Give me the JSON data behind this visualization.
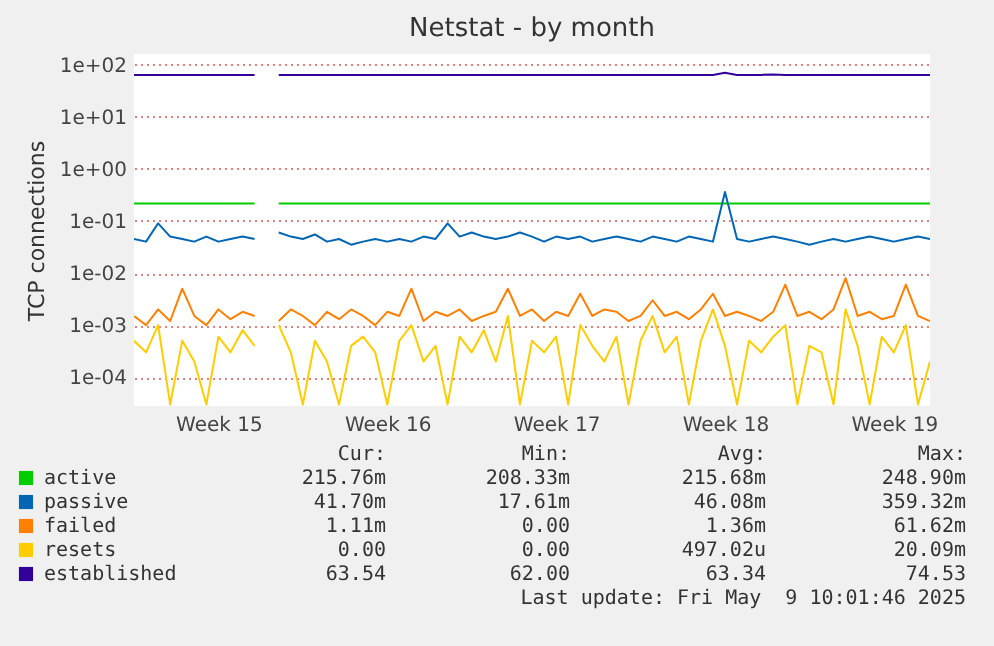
{
  "chart_data": {
    "type": "line",
    "title": "Netstat - by month",
    "ylabel": "TCP connections",
    "log": "y",
    "grid": "y",
    "legend": "bottom",
    "marker": "none",
    "line_style": "solid",
    "categories": [
      null,
      null,
      null,
      null,
      null,
      null,
      null,
      "Week 15",
      null,
      null,
      null,
      null,
      null,
      null,
      null,
      null,
      null,
      null,
      null,
      null,
      null,
      "Week 16",
      null,
      null,
      null,
      null,
      null,
      null,
      null,
      null,
      null,
      null,
      null,
      null,
      null,
      "Week 17",
      null,
      null,
      null,
      null,
      null,
      null,
      null,
      null,
      null,
      null,
      null,
      null,
      null,
      "Week 18",
      null,
      null,
      null,
      null,
      null,
      null,
      null,
      null,
      null,
      null,
      null,
      null,
      null,
      "Week 19",
      null,
      null,
      null
    ],
    "ylim": [
      2.8e-05,
      160
    ],
    "yticks": [
      {
        "value": 0.0001,
        "label": "1e-04"
      },
      {
        "value": 0.001,
        "label": "1e-03"
      },
      {
        "value": 0.01,
        "label": "1e-02"
      },
      {
        "value": 0.1,
        "label": "1e-01"
      },
      {
        "value": 1,
        "label": "1e+00"
      },
      {
        "value": 10,
        "label": "1e+01"
      },
      {
        "value": 100,
        "label": "1e+02"
      }
    ],
    "series": [
      {
        "name": "active",
        "color": "#00cc00",
        "values": [
          0.215,
          0.215,
          0.215,
          0.215,
          0.215,
          0.215,
          0.215,
          0.215,
          0.215,
          0.215,
          0.215,
          null,
          0.215,
          0.215,
          0.215,
          0.215,
          0.215,
          0.215,
          0.215,
          0.215,
          0.215,
          0.215,
          0.215,
          0.215,
          0.215,
          0.215,
          0.215,
          0.215,
          0.215,
          0.215,
          0.215,
          0.215,
          0.215,
          0.215,
          0.215,
          0.215,
          0.215,
          0.215,
          0.215,
          0.215,
          0.215,
          0.215,
          0.215,
          0.215,
          0.215,
          0.215,
          0.215,
          0.215,
          0.215,
          0.215,
          0.215,
          0.215,
          0.215,
          0.215,
          0.215,
          0.215,
          0.215,
          0.215,
          0.215,
          0.215,
          0.215,
          0.215,
          0.215,
          0.215,
          0.215,
          0.215,
          0.215
        ]
      },
      {
        "name": "passive",
        "color": "#0066b3",
        "values": [
          0.045,
          0.04,
          0.09,
          0.05,
          0.045,
          0.04,
          0.05,
          0.04,
          0.045,
          0.05,
          0.045,
          null,
          0.06,
          0.05,
          0.045,
          0.055,
          0.04,
          0.045,
          0.035,
          0.04,
          0.045,
          0.04,
          0.045,
          0.04,
          0.05,
          0.045,
          0.09,
          0.05,
          0.06,
          0.05,
          0.045,
          0.05,
          0.06,
          0.05,
          0.04,
          0.05,
          0.045,
          0.05,
          0.04,
          0.045,
          0.05,
          0.045,
          0.04,
          0.05,
          0.045,
          0.04,
          0.05,
          0.045,
          0.04,
          0.36,
          0.045,
          0.04,
          0.045,
          0.05,
          0.045,
          0.04,
          0.035,
          0.04,
          0.045,
          0.04,
          0.045,
          0.05,
          0.045,
          0.04,
          0.045,
          0.05,
          0.045
        ]
      },
      {
        "name": "failed",
        "color": "#ff8000",
        "values": [
          0.0015,
          0.001,
          0.002,
          0.0012,
          0.005,
          0.0015,
          0.001,
          0.002,
          0.0013,
          0.0018,
          0.0015,
          null,
          0.0012,
          0.002,
          0.0015,
          0.001,
          0.0018,
          0.0013,
          0.002,
          0.0015,
          0.001,
          0.0018,
          0.0015,
          0.005,
          0.0012,
          0.0018,
          0.0015,
          0.002,
          0.0012,
          0.0015,
          0.0018,
          0.005,
          0.0015,
          0.002,
          0.0012,
          0.0018,
          0.0015,
          0.004,
          0.0015,
          0.002,
          0.0018,
          0.0012,
          0.0015,
          0.003,
          0.0015,
          0.0018,
          0.0013,
          0.002,
          0.004,
          0.0015,
          0.0018,
          0.0015,
          0.0012,
          0.0018,
          0.006,
          0.0015,
          0.0018,
          0.0013,
          0.002,
          0.008,
          0.0015,
          0.0018,
          0.0013,
          0.0015,
          0.006,
          0.0015,
          0.0012
        ]
      },
      {
        "name": "resets",
        "color": "#ffcc00",
        "values": [
          0.0005,
          0.0003,
          0.001,
          3e-05,
          0.0005,
          0.0002,
          3e-05,
          0.0006,
          0.0003,
          0.0008,
          0.0004,
          null,
          0.001,
          0.0003,
          3e-05,
          0.0005,
          0.0002,
          3e-05,
          0.0004,
          0.0006,
          0.0003,
          3e-05,
          0.0005,
          0.001,
          0.0002,
          0.0004,
          3e-05,
          0.0006,
          0.0003,
          0.0008,
          0.0002,
          0.0015,
          3e-05,
          0.0005,
          0.0003,
          0.0006,
          3e-05,
          0.001,
          0.0004,
          0.0002,
          0.0006,
          3e-05,
          0.0005,
          0.0015,
          0.0003,
          0.0006,
          3e-05,
          0.0005,
          0.002,
          0.0004,
          3e-05,
          0.0005,
          0.0003,
          0.0006,
          0.001,
          3e-05,
          0.0004,
          0.0003,
          3e-05,
          0.002,
          0.0004,
          3e-05,
          0.0006,
          0.0003,
          0.001,
          3e-05,
          0.0002
        ]
      },
      {
        "name": "established",
        "color": "#330099",
        "values": [
          63.5,
          63.5,
          63.5,
          63.5,
          63.5,
          63.5,
          63.5,
          63.5,
          63.5,
          63.5,
          63.5,
          null,
          63.5,
          63.5,
          63.5,
          63.5,
          63.5,
          63.5,
          63.5,
          63.5,
          63.5,
          63.5,
          63.5,
          63.5,
          63.5,
          63.5,
          63.5,
          63.5,
          63.5,
          63.5,
          63.5,
          63.5,
          63.5,
          63.5,
          63.5,
          63.5,
          63.5,
          63.5,
          63.5,
          63.5,
          63.5,
          63.5,
          63.5,
          63.5,
          63.5,
          63.5,
          63.5,
          63.5,
          63.5,
          70,
          63.5,
          63.5,
          63.5,
          65,
          63.5,
          63.5,
          63.5,
          63.5,
          63.5,
          63.5,
          63.5,
          63.5,
          63.5,
          63.5,
          63.5,
          63.5,
          63.5
        ]
      }
    ],
    "annotations": [
      "Cur:",
      "Min:",
      "Avg:",
      "Max:",
      "215.76m",
      "208.33m",
      "215.68m",
      "248.90m",
      "41.70m",
      "17.61m",
      "46.08m",
      "359.32m",
      "1.11m",
      "0.00",
      "1.36m",
      "61.62m",
      "0.00",
      "0.00",
      "497.02u",
      "20.09m",
      "63.54",
      "62.00",
      "63.34",
      "74.53",
      "Last update: Fri May  9 10:01:46 2025"
    ]
  }
}
